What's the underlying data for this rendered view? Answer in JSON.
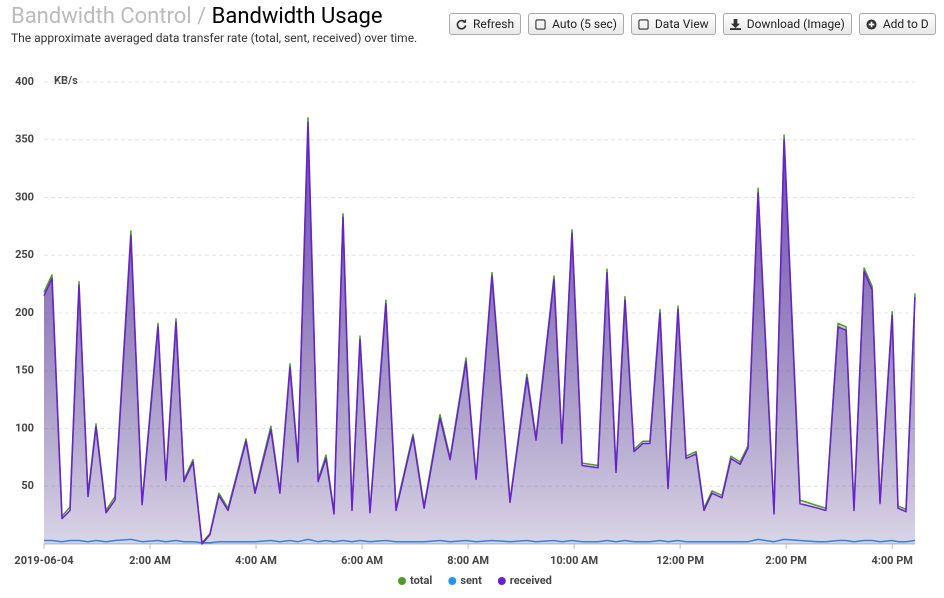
{
  "header": {
    "breadcrumb": "Bandwidth Control",
    "separator": "/",
    "title": "Bandwidth Usage",
    "description": "The approximate averaged data transfer rate (total, sent, received) over time."
  },
  "toolbar": {
    "buttons": [
      "Refresh",
      "Auto (5 sec)",
      "Data View",
      "Download (Image)",
      "Add to D"
    ]
  },
  "chart_data": {
    "type": "area",
    "y_label": "KB/s",
    "x": [
      0,
      0.15,
      0.34,
      0.49,
      0.66,
      0.83,
      0.98,
      1.17,
      1.34,
      1.64,
      1.85,
      2.15,
      2.3,
      2.49,
      2.64,
      2.81,
      2.98,
      3.13,
      3.3,
      3.47,
      3.81,
      3.98,
      4.28,
      4.45,
      4.64,
      4.79,
      4.98,
      5.17,
      5.32,
      5.47,
      5.64,
      5.81,
      5.96,
      6.15,
      6.45,
      6.64,
      6.96,
      7.17,
      7.47,
      7.66,
      7.96,
      8.15,
      8.45,
      8.79,
      9.11,
      9.28,
      9.62,
      9.77,
      9.96,
      10.15,
      10.45,
      10.62,
      10.79,
      10.96,
      11.13,
      11.3,
      11.43,
      11.62,
      11.77,
      11.96,
      12.11,
      12.3,
      12.45,
      12.6,
      12.79,
      12.96,
      13.13,
      13.28,
      13.47,
      13.77,
      13.96,
      14.26,
      14.6,
      14.75,
      14.98,
      15.13,
      15.28,
      15.47,
      15.62,
      15.77,
      16,
      16.11,
      16.26,
      16.43
    ],
    "series": [
      {
        "name": "total",
        "color": "#4f9a2f",
        "values": [
          218,
          233,
          24,
          32,
          227,
          43,
          104,
          29,
          41,
          271,
          36,
          191,
          57,
          195,
          56,
          73,
          1,
          9,
          44,
          31,
          91,
          46,
          102,
          46,
          156,
          73,
          369,
          56,
          77,
          28,
          286,
          31,
          180,
          29,
          211,
          31,
          95,
          33,
          112,
          75,
          161,
          58,
          235,
          38,
          147,
          92,
          232,
          89,
          272,
          70,
          68,
          238,
          64,
          214,
          82,
          89,
          89,
          203,
          50,
          206,
          76,
          80,
          31,
          46,
          42,
          76,
          71,
          85,
          308,
          28,
          354,
          38,
          33,
          31,
          191,
          188,
          31,
          239,
          223,
          37,
          201,
          33,
          30,
          217
        ]
      },
      {
        "name": "sent",
        "color": "#2196f3",
        "values": [
          3,
          3,
          2,
          3,
          3,
          2,
          3,
          2,
          3,
          4,
          2,
          3,
          2,
          3,
          2,
          2,
          1,
          1,
          2,
          2,
          2,
          2,
          3,
          2,
          3,
          2,
          4,
          2,
          3,
          2,
          3,
          2,
          3,
          2,
          3,
          2,
          2,
          2,
          3,
          2,
          3,
          2,
          3,
          2,
          3,
          2,
          3,
          2,
          3,
          2,
          2,
          3,
          2,
          3,
          2,
          2,
          2,
          3,
          2,
          3,
          2,
          2,
          2,
          2,
          2,
          2,
          2,
          2,
          4,
          2,
          4,
          3,
          2,
          2,
          3,
          3,
          2,
          3,
          3,
          2,
          3,
          2,
          2,
          3
        ]
      },
      {
        "name": "received",
        "color": "#6a1fd0",
        "values": [
          215,
          230,
          22,
          29,
          224,
          41,
          101,
          27,
          38,
          267,
          34,
          188,
          55,
          192,
          54,
          71,
          0,
          8,
          42,
          29,
          89,
          44,
          99,
          44,
          153,
          71,
          365,
          54,
          74,
          26,
          283,
          29,
          177,
          27,
          208,
          29,
          93,
          31,
          109,
          73,
          158,
          56,
          232,
          36,
          144,
          90,
          229,
          87,
          269,
          68,
          66,
          235,
          62,
          211,
          80,
          87,
          87,
          200,
          48,
          203,
          74,
          78,
          29,
          44,
          40,
          74,
          69,
          83,
          304,
          26,
          350,
          35,
          31,
          29,
          188,
          185,
          29,
          236,
          220,
          35,
          198,
          31,
          28,
          214
        ]
      }
    ],
    "xlim": [
      0,
      16.43
    ],
    "xticks": [
      {
        "value": 0,
        "label": "2019-06-04"
      },
      {
        "value": 2,
        "label": "2:00 AM"
      },
      {
        "value": 4,
        "label": "4:00 AM"
      },
      {
        "value": 6,
        "label": "6:00 AM"
      },
      {
        "value": 8,
        "label": "8:00 AM"
      },
      {
        "value": 10,
        "label": "10:00 AM"
      },
      {
        "value": 12,
        "label": "12:00 PM"
      },
      {
        "value": 14,
        "label": "2:00 PM"
      },
      {
        "value": 16,
        "label": "4:00 PM"
      }
    ],
    "ylim": [
      0,
      400
    ],
    "yticks": [
      50,
      100,
      150,
      200,
      250,
      300,
      350,
      400
    ],
    "grid": true,
    "legend": "bottom"
  }
}
